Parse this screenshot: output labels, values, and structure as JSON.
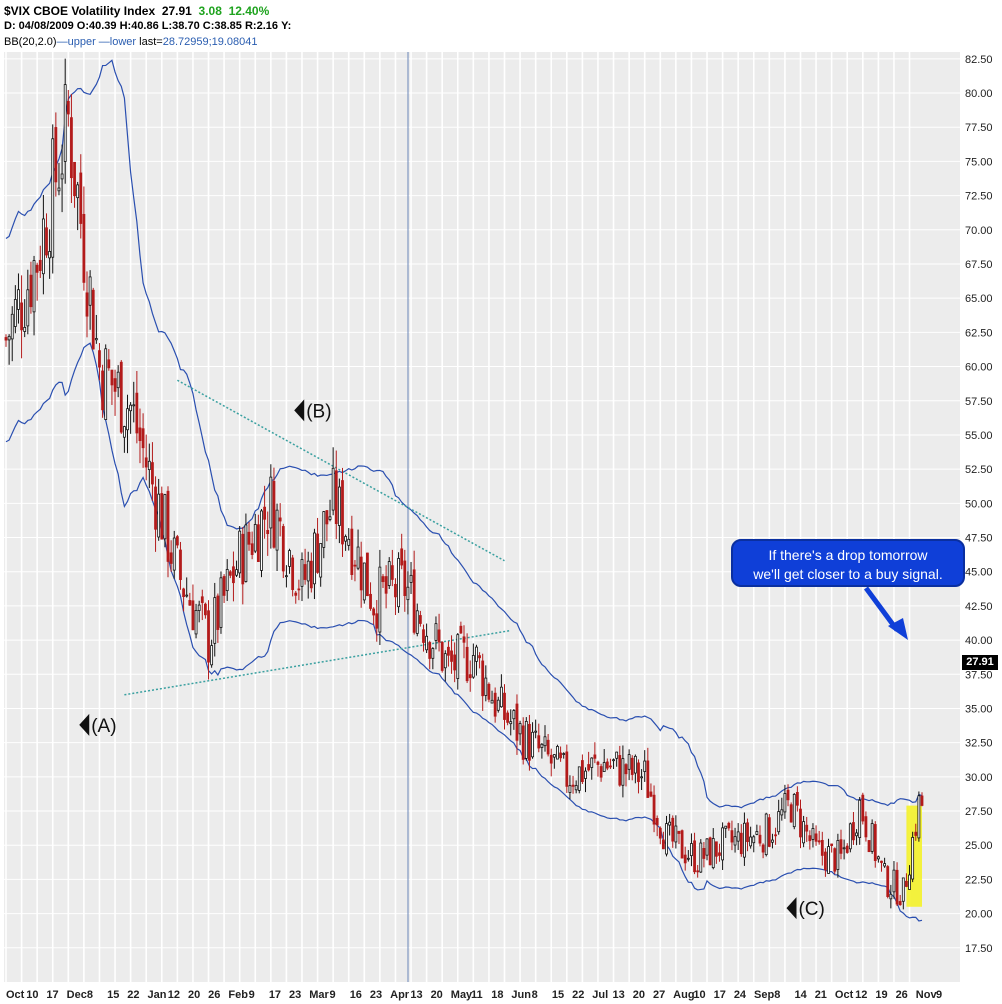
{
  "header": {
    "title": "$VIX CBOE Volatility Index",
    "last": "27.91",
    "change": "3.08",
    "change_pct": "12.40%",
    "line2": {
      "d": "D: 04/08/2009",
      "o": "O:40.39",
      "h": "H:40.86",
      "l": "L:38.70",
      "c": "C:38.85",
      "r": "R:2.16",
      "y": "Y:"
    },
    "line3": {
      "bb": "BB(20,2.0)",
      "upper": "—upper",
      "lower": "—lower",
      "last_label": "last=",
      "last_values": "28.72959;19.08041"
    }
  },
  "callout": {
    "line1": "If there's a drop tomorrow",
    "line2": "we'll get closer to a buy signal."
  },
  "last_price_label": "27.91",
  "colors": {
    "up_candle": "#111111",
    "down_candle": "#b31b1b",
    "bands": "#2a4fb0",
    "trendline": "#3aa0a0",
    "highlight": "#f4f22a",
    "callout": "#0f3fd8",
    "change_green": "#1fa31f"
  },
  "chart_data": {
    "type": "candlestick",
    "title": "$VIX CBOE Volatility Index",
    "y_axis": {
      "position": "right",
      "min": 15,
      "max": 83,
      "ticks": [
        "17.50",
        "20.00",
        "22.50",
        "25.00",
        "27.50",
        "30.00",
        "32.50",
        "35.00",
        "37.50",
        "40.00",
        "42.50",
        "45.00",
        "47.50",
        "50.00",
        "52.50",
        "55.00",
        "57.50",
        "60.00",
        "62.50",
        "65.00",
        "67.50",
        "70.00",
        "72.50",
        "75.00",
        "77.50",
        "80.00",
        "82.50"
      ]
    },
    "x_axis": {
      "ticks": [
        "Oct",
        "10",
        "17",
        "Dec",
        "8",
        "15",
        "22",
        "Jan",
        "12",
        "20",
        "26",
        "Feb",
        "9",
        "17",
        "23",
        "Mar",
        "9",
        "16",
        "23",
        "Apr",
        "13",
        "20",
        "May",
        "11",
        "18",
        "Jun",
        "8",
        "15",
        "22",
        "Jul",
        "13",
        "20",
        "27",
        "Aug",
        "10",
        "17",
        "24",
        "Sep",
        "8",
        "14",
        "21",
        "Oct",
        "12",
        "19",
        "26",
        "Nov",
        "9"
      ]
    },
    "grid": "on",
    "close_anchors": [
      {
        "day": 0,
        "close": 62
      },
      {
        "day": 10,
        "close": 68
      },
      {
        "day": 20,
        "close": 78
      },
      {
        "day": 30,
        "close": 60
      },
      {
        "day": 40,
        "close": 57
      },
      {
        "day": 55,
        "close": 45
      },
      {
        "day": 65,
        "close": 40
      },
      {
        "day": 75,
        "close": 46
      },
      {
        "day": 85,
        "close": 50
      },
      {
        "day": 95,
        "close": 44
      },
      {
        "day": 105,
        "close": 50
      },
      {
        "day": 110,
        "close": 48
      },
      {
        "day": 118,
        "close": 43
      },
      {
        "day": 128,
        "close": 44
      },
      {
        "day": 135,
        "close": 41
      },
      {
        "day": 142,
        "close": 38
      },
      {
        "day": 150,
        "close": 39
      },
      {
        "day": 158,
        "close": 35
      },
      {
        "day": 168,
        "close": 32.5
      },
      {
        "day": 180,
        "close": 30
      },
      {
        "day": 192,
        "close": 31
      },
      {
        "day": 205,
        "close": 30
      },
      {
        "day": 212,
        "close": 25.5
      },
      {
        "day": 222,
        "close": 24
      },
      {
        "day": 230,
        "close": 25
      },
      {
        "day": 245,
        "close": 26
      },
      {
        "day": 252,
        "close": 28
      },
      {
        "day": 260,
        "close": 24.5
      },
      {
        "day": 268,
        "close": 24
      },
      {
        "day": 274,
        "close": 28
      },
      {
        "day": 282,
        "close": 22.5
      },
      {
        "day": 288,
        "close": 21.5
      },
      {
        "day": 293,
        "close": 27.91
      }
    ],
    "annotations": [
      {
        "text": "(A)",
        "day": 28,
        "value": 33.8
      },
      {
        "text": "(B)",
        "day": 97,
        "value": 56.8
      },
      {
        "text": "(C)",
        "day": 255,
        "value": 20.4
      }
    ],
    "trendlines": [
      {
        "from": {
          "day": 55,
          "value": 59
        },
        "to": {
          "day": 160,
          "value": 45.8
        }
      },
      {
        "from": {
          "day": 38,
          "value": 36
        },
        "to": {
          "day": 162,
          "value": 40.7
        }
      }
    ],
    "highlight": {
      "from_day": 289,
      "to_day": 294,
      "from_value": 20.5,
      "to_value": 27.9
    }
  }
}
